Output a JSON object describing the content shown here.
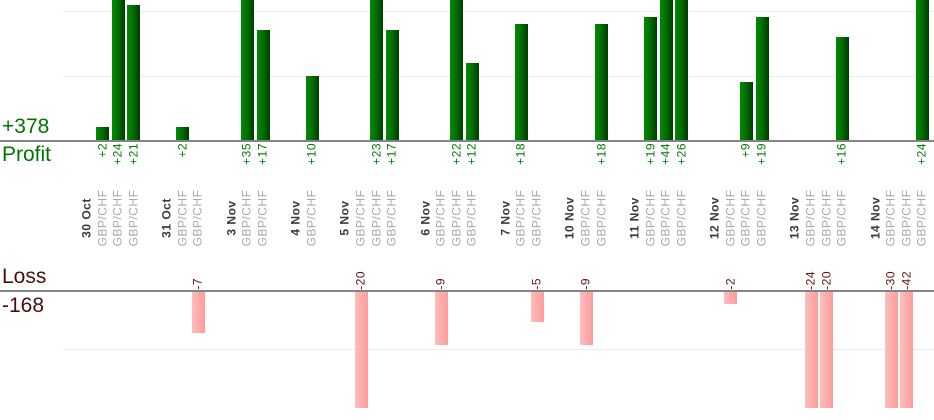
{
  "colors": {
    "background": "#ffffff",
    "profit_text": "#007600",
    "loss_text": "#4c0d0d",
    "value_profit_text": "#007b00",
    "value_loss_text": "#5a1414",
    "date_text": "#3a3a3a",
    "instrument_text": "#a9a9a9",
    "axis_line": "#848484",
    "gridline": "#ededed",
    "profit_bar_light": "#028a02",
    "profit_bar_mid": "#017101",
    "profit_bar_dark": "#013901",
    "loss_bar_light": "#ffbdbd",
    "loss_bar_dark": "#ff9c9c"
  },
  "chart_data": {
    "type": "bar",
    "orientation": "vertical-columns",
    "series_label": "GBP/CHF",
    "profit_axis": {
      "label": "Profit",
      "total": "+378",
      "visible_range": [
        0,
        22
      ],
      "gridlines": [
        10,
        20
      ],
      "note": "bars above +21 are clipped at top edge"
    },
    "loss_axis": {
      "label": "Loss",
      "total": "-168",
      "range": [
        0,
        -20
      ],
      "gridlines": [
        -10
      ],
      "note": "bars beyond -20 are clipped at bottom of plot"
    },
    "groups": [
      {
        "date": "30 Oct",
        "trades": [
          2,
          24,
          21
        ]
      },
      {
        "date": "31 Oct",
        "trades": [
          2,
          -7
        ]
      },
      {
        "date": "3 Nov",
        "trades": [
          35,
          17
        ]
      },
      {
        "date": "4 Nov",
        "trades": [
          10
        ]
      },
      {
        "date": "5 Nov",
        "trades": [
          -20,
          23,
          17
        ]
      },
      {
        "date": "6 Nov",
        "trades": [
          -9,
          22,
          12
        ]
      },
      {
        "date": "7 Nov",
        "trades": [
          18,
          -5
        ]
      },
      {
        "date": "10 Nov",
        "trades": [
          -9,
          18
        ]
      },
      {
        "date": "11 Nov",
        "trades": [
          19,
          44,
          26
        ]
      },
      {
        "date": "12 Nov",
        "trades": [
          -2,
          9,
          19
        ]
      },
      {
        "date": "13 Nov",
        "trades": [
          -24,
          -20,
          16
        ]
      },
      {
        "date": "14 Nov",
        "trades": [
          -30,
          -42,
          24
        ]
      }
    ],
    "grid": "on",
    "legend": "none"
  }
}
